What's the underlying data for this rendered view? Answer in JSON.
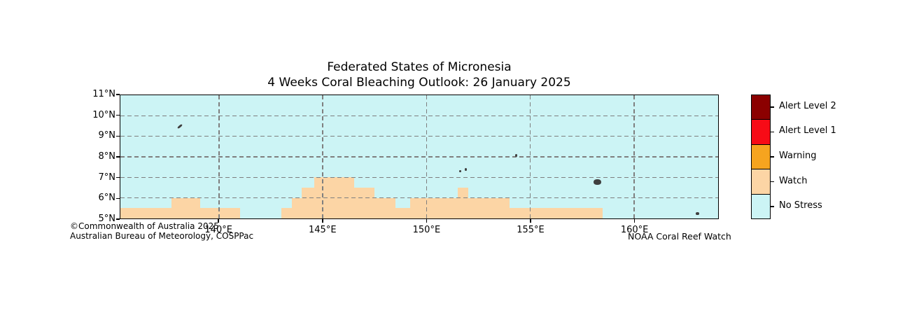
{
  "figure": {
    "title_line1": "Federated States of Micronesia",
    "title_line2": "4 Weeks Coral Bleaching Outlook: 26 January 2025"
  },
  "colors": {
    "alert_level_2": "#8B0000",
    "alert_level_1": "#F70B16",
    "warning": "#F6A41F",
    "watch": "#FCD5A5",
    "no_stress": "#CCF4F5",
    "gridline": "#7f7f7f",
    "island": "#3f3f3f",
    "axis": "#000000"
  },
  "legend": {
    "entries": [
      {
        "label": "Alert Level 2",
        "color": "#8B0000"
      },
      {
        "label": "Alert Level 1",
        "color": "#F70B16"
      },
      {
        "label": "Warning",
        "color": "#F6A41F"
      },
      {
        "label": "Watch",
        "color": "#FCD5A5"
      },
      {
        "label": "No Stress",
        "color": "#CCF4F5"
      }
    ]
  },
  "footer": {
    "copyright_line1": "©Commonwealth of Australia 2025",
    "copyright_line2": "Australian Bureau of Meteorology, COSPPac",
    "credit": "NOAA Coral Reef Watch"
  },
  "chart_data": {
    "type": "heatmap",
    "title": "Federated States of Micronesia — 4 Weeks Coral Bleaching Outlook: 26 January 2025",
    "legend_position": "right",
    "grid": "dashed gray at whole degrees",
    "lon_range_e": [
      135.25,
      164.05
    ],
    "lat_range_n": [
      5,
      11
    ],
    "xticks": [
      {
        "label": "140°E",
        "lon": 140,
        "grid": true
      },
      {
        "label": "145°E",
        "lon": 145,
        "grid": true
      },
      {
        "label": "150°E",
        "lon": 150,
        "grid": true
      },
      {
        "label": "155°E",
        "lon": 155,
        "grid": true
      },
      {
        "label": "160°E",
        "lon": 160,
        "grid": true
      }
    ],
    "yticks": [
      {
        "label": "11°N",
        "lat": 11,
        "grid": false
      },
      {
        "label": "10°N",
        "lat": 10,
        "grid": true
      },
      {
        "label": "9°N",
        "lat": 9,
        "grid": true
      },
      {
        "label": "8°N",
        "lat": 8,
        "grid": true
      },
      {
        "label": "7°N",
        "lat": 7,
        "grid": true
      },
      {
        "label": "6°N",
        "lat": 6,
        "grid": true
      },
      {
        "label": "5°N",
        "lat": 5,
        "grid": false
      }
    ],
    "categories": [
      "Alert Level 2",
      "Alert Level 1",
      "Warning",
      "Watch",
      "No Stress"
    ],
    "default_value": "No Stress",
    "cell_value": "Watch",
    "watch_cells": [
      {
        "lon_min": 144.6,
        "lon_max": 146.5,
        "lat_min": 6.5,
        "lat_max": 7.0
      },
      {
        "lon_min": 144.0,
        "lon_max": 147.5,
        "lat_min": 6.0,
        "lat_max": 6.5
      },
      {
        "lon_min": 151.5,
        "lon_max": 152.0,
        "lat_min": 6.0,
        "lat_max": 6.5
      },
      {
        "lon_min": 137.7,
        "lon_max": 139.1,
        "lat_min": 5.5,
        "lat_max": 6.0
      },
      {
        "lon_min": 143.5,
        "lon_max": 148.5,
        "lat_min": 5.5,
        "lat_max": 6.0
      },
      {
        "lon_min": 149.2,
        "lon_max": 154.0,
        "lat_min": 5.5,
        "lat_max": 6.0
      },
      {
        "lon_min": 135.25,
        "lon_max": 141.0,
        "lat_min": 5.0,
        "lat_max": 5.5
      },
      {
        "lon_min": 143.0,
        "lon_max": 158.5,
        "lat_min": 5.0,
        "lat_max": 5.5
      }
    ],
    "islands": [
      {
        "lon": 138.1,
        "lat": 9.5,
        "w": 8,
        "h": 3,
        "rot": -40
      },
      {
        "lon": 154.32,
        "lat": 8.06,
        "w": 3,
        "h": 4,
        "rot": 0
      },
      {
        "lon": 151.62,
        "lat": 7.3,
        "w": 3,
        "h": 3,
        "rot": 0
      },
      {
        "lon": 151.88,
        "lat": 7.38,
        "w": 3,
        "h": 4,
        "rot": 0
      },
      {
        "lon": 158.22,
        "lat": 6.78,
        "w": 11,
        "h": 8,
        "rot": 0
      },
      {
        "lon": 163.05,
        "lat": 5.24,
        "w": 5,
        "h": 4,
        "rot": 0
      }
    ]
  }
}
